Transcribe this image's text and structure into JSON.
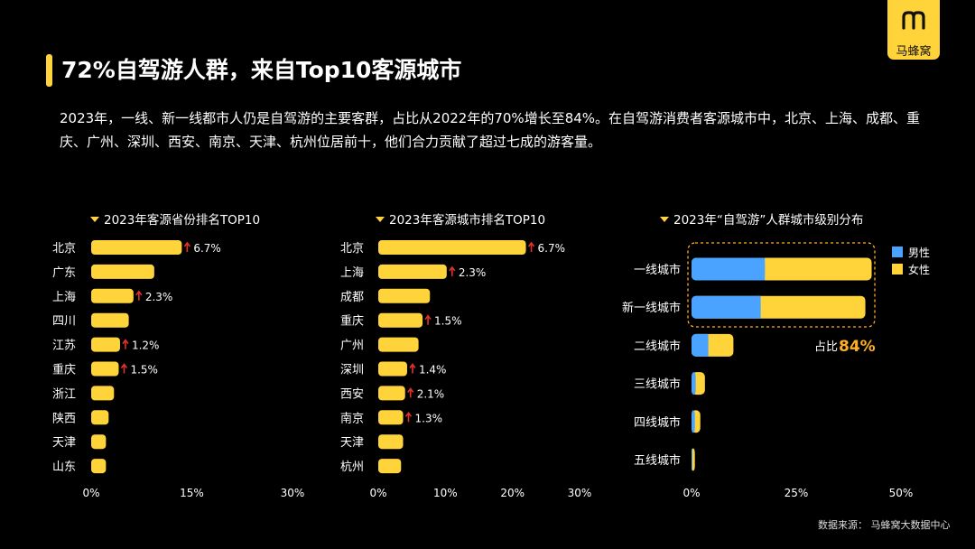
{
  "title": "72%自驾游人群，来自Top10客源城市",
  "logo_text": "马蜂窝",
  "description": "2023年，一线、新一线都市人仍是自驾游的主要客群，占比从2022年的70%增长至84%。在自驾游消费者客源城市中，北京、上海、成都、重庆、广州、深圳、西安、南京、天津、杭州位居前十，他们合力贡献了超过七成的游客量。",
  "source": "数据来源： 马蜂窝大数据中心",
  "colors": {
    "yellow": "#ffd43b",
    "blue": "#4aa3ff",
    "arrow": "#e0322b",
    "accent": "#ffb01f"
  },
  "chart_data": [
    {
      "type": "bar",
      "title": "2023年客源省份排名TOP10",
      "categories": [
        "北京",
        "广东",
        "上海",
        "四川",
        "江苏",
        "重庆",
        "浙江",
        "陕西",
        "天津",
        "山东"
      ],
      "values": [
        13.5,
        9.4,
        6.3,
        5.6,
        4.3,
        4.1,
        3.4,
        2.6,
        2.2,
        2.2
      ],
      "annotations": [
        "6.7%",
        "",
        "2.3%",
        "",
        "1.2%",
        "1.5%",
        "",
        "",
        "",
        ""
      ],
      "xlim": [
        0,
        30
      ],
      "xticks": [
        "0%",
        "15%",
        "30%"
      ]
    },
    {
      "type": "bar",
      "title": "2023年客源城市排名TOP10",
      "categories": [
        "北京",
        "上海",
        "成都",
        "重庆",
        "广州",
        "深圳",
        "西安",
        "南京",
        "天津",
        "杭州"
      ],
      "values": [
        22.0,
        10.2,
        7.7,
        6.6,
        6.0,
        4.3,
        4.0,
        3.7,
        3.7,
        3.4
      ],
      "annotations": [
        "6.7%",
        "2.3%",
        "",
        "1.5%",
        "",
        "1.4%",
        "2.1%",
        "1.3%",
        "",
        ""
      ],
      "xlim": [
        0,
        30
      ],
      "xticks": [
        "0%",
        "10%",
        "20%",
        "30%"
      ]
    },
    {
      "type": "bar",
      "stacked": true,
      "title": "2023年“自驾游”人群城市级别分布",
      "categories": [
        "一线城市",
        "新一线城市",
        "二线城市",
        "三线城市",
        "四线城市",
        "五线城市"
      ],
      "series": [
        {
          "name": "男性",
          "values": [
            17.5,
            16.5,
            4.0,
            1.0,
            0.8,
            0.2
          ]
        },
        {
          "name": "女性",
          "values": [
            25.5,
            25.0,
            6.0,
            2.2,
            1.3,
            0.6
          ]
        }
      ],
      "xlim": [
        0,
        50
      ],
      "xticks": [
        "0%",
        "25%",
        "50%"
      ],
      "highlight_label": "占比",
      "highlight_value": "84%",
      "legend": "top-right"
    }
  ]
}
